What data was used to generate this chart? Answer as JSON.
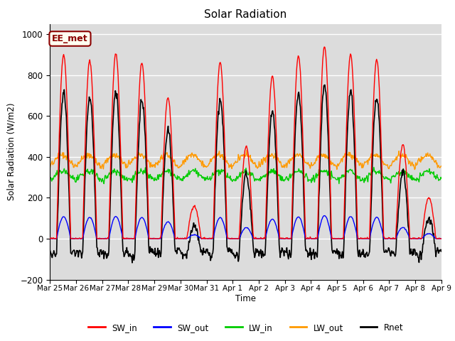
{
  "title": "Solar Radiation",
  "ylabel": "Solar Radiation (W/m2)",
  "xlabel": "Time",
  "ylim": [
    -200,
    1050
  ],
  "yticks": [
    -200,
    0,
    200,
    400,
    600,
    800,
    1000
  ],
  "background_color": "#dcdcdc",
  "annotation_text": "EE_met",
  "annotation_bg": "#fffff0",
  "annotation_border": "#8b0000",
  "x_tick_labels": [
    "Mar 25",
    "Mar 26",
    "Mar 27",
    "Mar 28",
    "Mar 29",
    "Mar 30",
    "Mar 31",
    "Apr 1",
    "Apr 2",
    "Apr 3",
    "Apr 4",
    "Apr 5",
    "Apr 6",
    "Apr 7",
    "Apr 8",
    "Apr 9"
  ],
  "legend_labels": [
    "SW_in",
    "SW_out",
    "LW_in",
    "LW_out",
    "Rnet"
  ],
  "legend_colors": [
    "#ff0000",
    "#0000ff",
    "#00cc00",
    "#ff9900",
    "#000000"
  ],
  "grid_color": "#ffffff",
  "num_days": 15,
  "SW_in_peaks": [
    900,
    870,
    905,
    860,
    690,
    160,
    860,
    450,
    795,
    895,
    940,
    900,
    875,
    460,
    200
  ],
  "SW_out_scale": 0.12,
  "LW_in_base": 310,
  "LW_in_amp": 20,
  "LW_out_base": 380,
  "LW_out_amp": 30,
  "night_rnet": -80
}
